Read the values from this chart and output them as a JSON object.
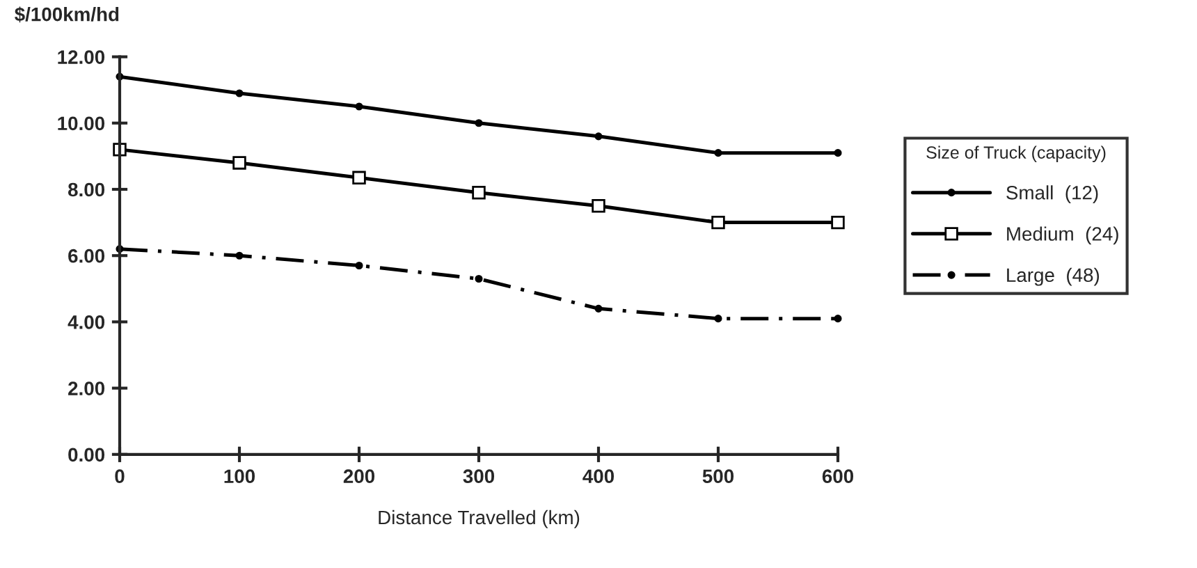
{
  "chart_data": {
    "type": "line",
    "ylabel": "$/100km/hd",
    "xlabel": "Distance Travelled (km)",
    "legend_title": "Size of Truck (capacity)",
    "legend": "right",
    "x": [
      0,
      100,
      200,
      300,
      400,
      500,
      600
    ],
    "xlim": [
      0,
      600
    ],
    "xticks": [
      0,
      100,
      200,
      300,
      400,
      500,
      600
    ],
    "ylim": [
      0,
      12
    ],
    "yticks": [
      {
        "value": 0,
        "label": "0.00"
      },
      {
        "value": 2,
        "label": "2.00"
      },
      {
        "value": 4,
        "label": "4.00"
      },
      {
        "value": 6,
        "label": "6.00"
      },
      {
        "value": 8,
        "label": "8.00"
      },
      {
        "value": 10,
        "label": "10.00"
      },
      {
        "value": 12,
        "label": "12.00"
      }
    ],
    "grid": false,
    "series": [
      {
        "name": "Small  (12)",
        "color": "#000000",
        "marker": "circle",
        "line_style": "solid",
        "values": [
          11.4,
          10.9,
          10.5,
          10.0,
          9.6,
          9.1,
          9.1
        ]
      },
      {
        "name": "Medium  (24)",
        "color": "#000000",
        "marker": "square",
        "line_style": "solid",
        "values": [
          9.2,
          8.8,
          8.35,
          7.9,
          7.5,
          7.0,
          7.0
        ]
      },
      {
        "name": "Large  (48)",
        "color": "#000000",
        "marker": "circle",
        "line_style": "dashed",
        "values": [
          6.2,
          6.0,
          5.7,
          5.3,
          4.4,
          4.1,
          4.1
        ]
      }
    ]
  }
}
